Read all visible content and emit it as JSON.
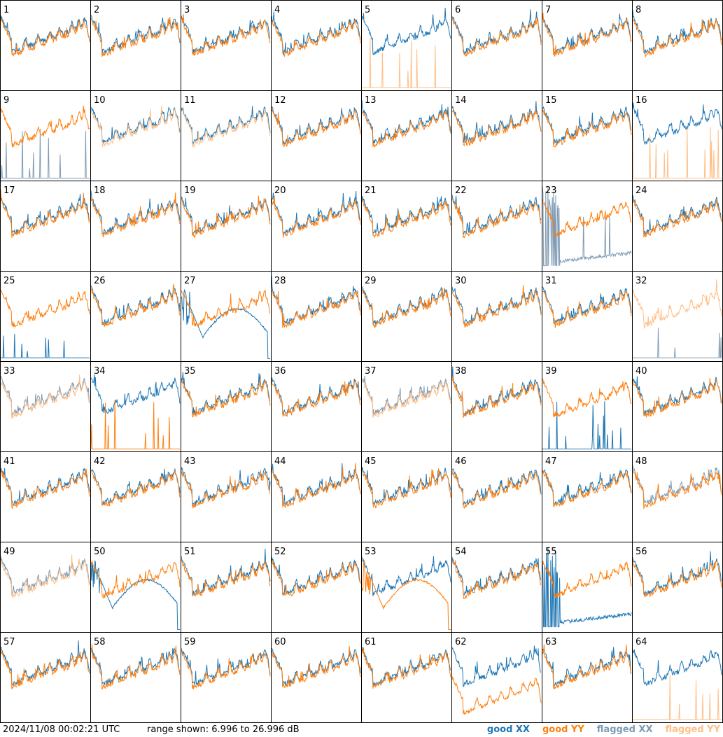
{
  "chart_data": {
    "type": "line",
    "panel_labels": [
      "1",
      "2",
      "3",
      "4",
      "5",
      "6",
      "7",
      "8",
      "9",
      "10",
      "11",
      "12",
      "13",
      "14",
      "15",
      "16",
      "17",
      "18",
      "19",
      "20",
      "21",
      "22",
      "23",
      "24",
      "25",
      "26",
      "27",
      "28",
      "29",
      "30",
      "31",
      "32",
      "33",
      "34",
      "35",
      "36",
      "37",
      "38",
      "39",
      "40",
      "41",
      "42",
      "43",
      "44",
      "45",
      "46",
      "47",
      "48",
      "49",
      "50",
      "51",
      "52",
      "53",
      "54",
      "55",
      "56",
      "57",
      "58",
      "59",
      "60",
      "61",
      "62",
      "63",
      "64"
    ],
    "ylim_db": [
      6.996,
      26.996
    ],
    "grid": true,
    "legend_position": "bottom-right",
    "special_panels": {
      "5": {
        "xx": "good",
        "yy": "flagged",
        "yy_shape": "spikes"
      },
      "9": {
        "xx": "flagged",
        "yy": "good",
        "xx_shape": "spikes"
      },
      "10": {
        "xx": "good",
        "yy": "flagged"
      },
      "11": {
        "xx": "good",
        "yy": "flagged"
      },
      "16": {
        "xx": "good",
        "yy": "flagged",
        "yy_shape": "spikes"
      },
      "23": {
        "xx": "flagged",
        "yy": "good",
        "xx_shape": "spikes_then_low"
      },
      "25": {
        "xx": "good",
        "yy": "good",
        "xx_shape": "low"
      },
      "27": {
        "xx": "good",
        "yy": "good",
        "xx_shape": "dip"
      },
      "32": {
        "xx": "flagged",
        "yy": "flagged",
        "xx_shape": "low"
      },
      "33": {
        "xx": "flagged",
        "yy": "flagged"
      },
      "34": {
        "xx": "good",
        "yy": "good",
        "yy_shape": "spikes"
      },
      "37": {
        "xx": "flagged",
        "yy": "flagged"
      },
      "39": {
        "xx": "good",
        "yy": "good",
        "xx_shape": "spikes"
      },
      "48": {
        "xx": "flagged",
        "yy": "good"
      },
      "49": {
        "xx": "flagged",
        "yy": "flagged"
      },
      "50": {
        "xx": "good",
        "yy": "good",
        "xx_shape": "dip"
      },
      "53": {
        "xx": "good",
        "yy": "good",
        "yy_shape": "dip"
      },
      "55": {
        "xx": "good",
        "yy": "good",
        "xx_shape": "spikes_then_low"
      },
      "62": {
        "xx": "good",
        "yy": "good",
        "yy_shape": "lowered"
      },
      "64": {
        "xx": "good",
        "yy": "flagged",
        "yy_shape": "spikes"
      }
    }
  },
  "footer": {
    "timestamp": "2024/11/08 00:02:21 UTC",
    "range_text": "range shown: 6.996 to 26.996 dB"
  },
  "legend": [
    {
      "label": "good XX",
      "color": "#1f77b4"
    },
    {
      "label": "good YY",
      "color": "#ff7f0e"
    },
    {
      "label": "flagged XX",
      "color": "#7f9bb4"
    },
    {
      "label": "flagged YY",
      "color": "#ffbf87"
    }
  ],
  "colors": {
    "good_xx": "#1f77b4",
    "good_yy": "#ff7f0e",
    "flagged_xx": "#7f9bb4",
    "flagged_yy": "#ffbf87",
    "grid": "#000000"
  }
}
